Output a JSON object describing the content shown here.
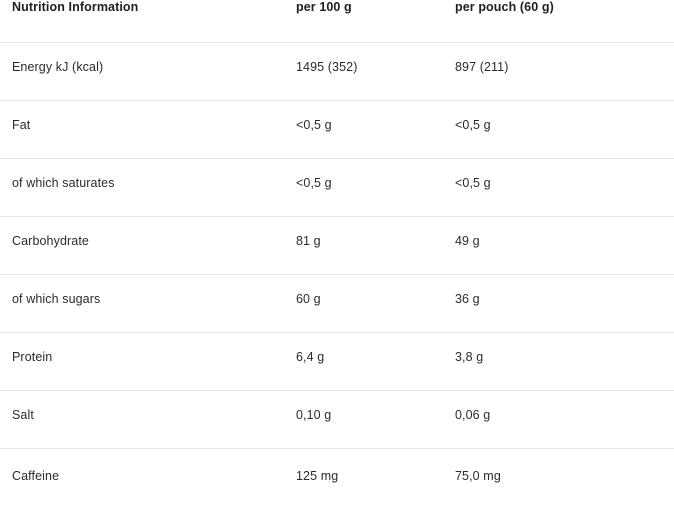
{
  "table": {
    "headers": [
      "Nutrition Information",
      "per 100 g",
      "per pouch (60 g)"
    ],
    "rows": [
      {
        "label": "Energy kJ (kcal)",
        "per100": "1495 (352)",
        "perPouch": "897 (211)"
      },
      {
        "label": "Fat",
        "per100": "<0,5 g",
        "perPouch": "<0,5 g"
      },
      {
        "label": "of which saturates",
        "per100": "<0,5 g",
        "perPouch": "<0,5 g"
      },
      {
        "label": "Carbohydrate",
        "per100": "81 g",
        "perPouch": "49 g"
      },
      {
        "label": "of which sugars",
        "per100": "60 g",
        "perPouch": "36 g"
      },
      {
        "label": "Protein",
        "per100": "6,4 g",
        "perPouch": "3,8 g"
      },
      {
        "label": "Salt",
        "per100": "0,10 g",
        "perPouch": "0,06 g"
      },
      {
        "label": "Caffeine",
        "per100": "125 mg",
        "perPouch": "75,0 mg"
      }
    ]
  }
}
